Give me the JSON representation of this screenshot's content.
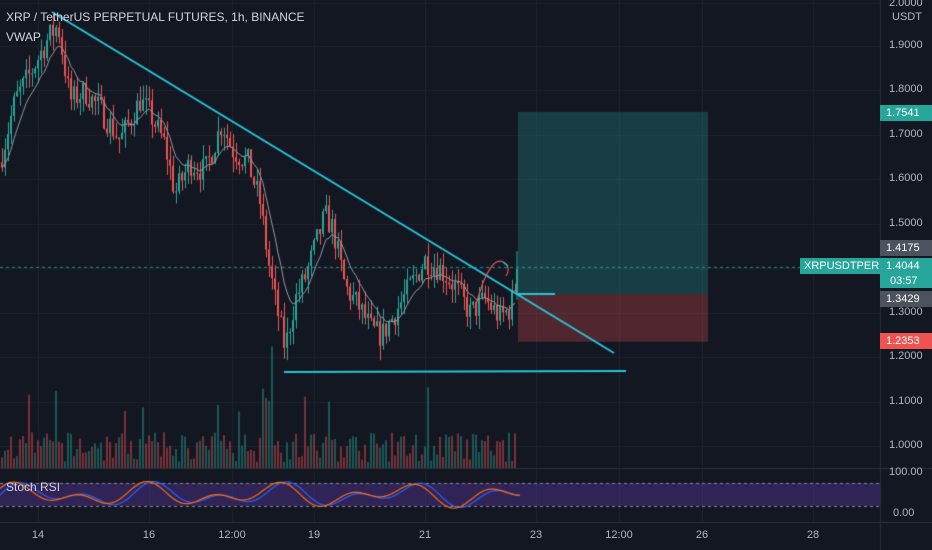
{
  "header": {
    "title": "XRP / TetherUS PERPETUAL FUTURES, 1h, BINANCE",
    "indicator1": "VWAP",
    "indicator2": "Stoch RSI"
  },
  "price_axis": {
    "unit": "USDT",
    "ticks": [
      "2.0000",
      "1.9000",
      "1.8000",
      "1.7000",
      "1.6000",
      "1.5000",
      "1.3000",
      "1.2000",
      "1.1000",
      "1.0000"
    ]
  },
  "stoch_axis": {
    "ticks": [
      "100.00",
      "0.00"
    ]
  },
  "time_axis": {
    "ticks": [
      "14",
      "16",
      "12:00",
      "19",
      "21",
      "23",
      "12:00",
      "26",
      "28"
    ]
  },
  "badges": {
    "target": "1.7541",
    "upper": "1.4175",
    "symbol": "XRPUSDTPERP",
    "last": "1.4044",
    "countdown": "03:57",
    "entry": "1.3429",
    "stop": "1.2353"
  },
  "colors": {
    "background": "#131722",
    "up": "#26a69a",
    "down": "#ef5350",
    "trendline": "#26c6da",
    "profit_zone": "#1a4a45",
    "loss_zone": "#4a2328",
    "stoch_band": "#3b1f5c"
  }
}
